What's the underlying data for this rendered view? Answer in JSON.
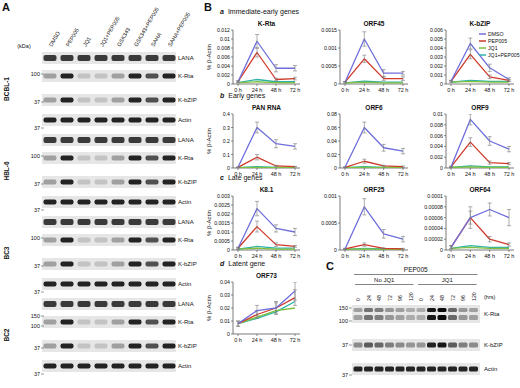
{
  "chart_data": [
    {
      "type": "line",
      "title": "K-Rta",
      "y_label": "% β-Actin",
      "categories": [
        "0 h",
        "24 h",
        "48 h",
        "72 h"
      ],
      "ylim": [
        0,
        0.012
      ],
      "yticks": [
        0,
        0.002,
        0.004,
        0.006,
        0.008,
        0.01,
        0.012
      ],
      "series": [
        {
          "name": "DMSO",
          "color": "#6f6fdc",
          "values": [
            0.0005,
            0.0095,
            0.0035,
            0.0035
          ],
          "errors": [
            0.0002,
            0.0015,
            0.0008,
            0.0006
          ]
        },
        {
          "name": "PEP005",
          "color": "#d03a2a",
          "values": [
            0.0005,
            0.007,
            0.001,
            0.0012
          ],
          "errors": [
            0.0002,
            0.001,
            0.0003,
            0.0003
          ]
        },
        {
          "name": "JQ1",
          "color": "#7fbf3f",
          "values": [
            0.0003,
            0.0005,
            0.0003,
            0.0003
          ]
        },
        {
          "name": "JQ1+PEP005",
          "color": "#2bb3a8",
          "values": [
            0.0003,
            0.001,
            0.0005,
            0.0005
          ]
        }
      ]
    },
    {
      "type": "line",
      "title": "ORF45",
      "categories": [
        "0 h",
        "24 h",
        "48 h",
        "72 h"
      ],
      "ylim": [
        0,
        0.0015
      ],
      "yticks": [
        0,
        0.0005,
        0.001,
        0.0015
      ],
      "series": [
        {
          "name": "DMSO",
          "color": "#6f6fdc",
          "values": [
            5e-05,
            0.00125,
            0.0003,
            0.0003
          ],
          "errors": [
            2e-05,
            0.0002,
            0.0001,
            5e-05
          ]
        },
        {
          "name": "PEP005",
          "color": "#d03a2a",
          "values": [
            5e-05,
            0.0007,
            0.00015,
            0.00015
          ],
          "errors": [
            2e-05,
            0.0001,
            5e-05,
            5e-05
          ]
        },
        {
          "name": "JQ1",
          "color": "#7fbf3f",
          "values": [
            3e-05,
            5e-05,
            3e-05,
            3e-05
          ]
        },
        {
          "name": "JQ1+PEP005",
          "color": "#2bb3a8",
          "values": [
            3e-05,
            8e-05,
            5e-05,
            5e-05
          ]
        }
      ]
    },
    {
      "type": "line",
      "title": "K-bZIP",
      "legend": "upper right",
      "categories": [
        "0 h",
        "24 h",
        "48 h",
        "72 h"
      ],
      "ylim": [
        0,
        0.006
      ],
      "yticks": [
        0,
        0.001,
        0.002,
        0.003,
        0.004,
        0.005,
        0.006
      ],
      "series": [
        {
          "name": "DMSO",
          "color": "#6f6fdc",
          "values": [
            0.0003,
            0.0045,
            0.0018,
            0.0005
          ],
          "errors": [
            0.0001,
            0.0006,
            0.0004,
            0.0002
          ]
        },
        {
          "name": "PEP005",
          "color": "#d03a2a",
          "values": [
            0.0003,
            0.0033,
            0.0008,
            0.0004
          ],
          "errors": [
            0.0001,
            0.0005,
            0.0002,
            0.0001
          ]
        },
        {
          "name": "JQ1",
          "color": "#7fbf3f",
          "values": [
            0.0002,
            0.0003,
            0.0002,
            0.0002
          ]
        },
        {
          "name": "JQ1+PEP005",
          "color": "#2bb3a8",
          "values": [
            0.0002,
            0.0004,
            0.0003,
            0.0003
          ]
        }
      ]
    },
    {
      "type": "line",
      "title": "PAN RNA",
      "y_label": "% β-Actin",
      "categories": [
        "0 h",
        "24 h",
        "48 h",
        "72 h"
      ],
      "ylim": [
        0,
        0.4
      ],
      "yticks": [
        0,
        0.1,
        0.2,
        0.3,
        0.4
      ],
      "series": [
        {
          "name": "DMSO",
          "color": "#6f6fdc",
          "values": [
            0.005,
            0.3,
            0.18,
            0.16
          ],
          "errors": [
            0.002,
            0.04,
            0.03,
            0.02
          ]
        },
        {
          "name": "PEP005",
          "color": "#d03a2a",
          "values": [
            0.005,
            0.08,
            0.015,
            0.01
          ],
          "errors": [
            0.002,
            0.02,
            0.005,
            0.003
          ]
        },
        {
          "name": "JQ1",
          "color": "#7fbf3f",
          "values": [
            0.003,
            0.005,
            0.003,
            0.003
          ]
        },
        {
          "name": "JQ1+PEP005",
          "color": "#2bb3a8",
          "values": [
            0.003,
            0.01,
            0.005,
            0.005
          ]
        }
      ]
    },
    {
      "type": "line",
      "title": "ORF6",
      "categories": [
        "0 h",
        "24 h",
        "48 h",
        "72 h"
      ],
      "ylim": [
        0,
        0.08
      ],
      "yticks": [
        0,
        0.02,
        0.04,
        0.06,
        0.08
      ],
      "series": [
        {
          "name": "DMSO",
          "color": "#6f6fdc",
          "values": [
            0.001,
            0.06,
            0.03,
            0.025
          ],
          "errors": [
            0.0005,
            0.008,
            0.005,
            0.004
          ]
        },
        {
          "name": "PEP005",
          "color": "#d03a2a",
          "values": [
            0.001,
            0.01,
            0.003,
            0.002
          ],
          "errors": [
            0.0005,
            0.003,
            0.001,
            0.001
          ]
        },
        {
          "name": "JQ1",
          "color": "#7fbf3f",
          "values": [
            0.0005,
            0.001,
            0.0005,
            0.0005
          ]
        },
        {
          "name": "JQ1+PEP005",
          "color": "#2bb3a8",
          "values": [
            0.0005,
            0.002,
            0.001,
            0.001
          ]
        }
      ]
    },
    {
      "type": "line",
      "title": "ORF9",
      "categories": [
        "0 h",
        "24 h",
        "48 h",
        "72 h"
      ],
      "ylim": [
        0,
        0.01
      ],
      "yticks": [
        0,
        0.002,
        0.004,
        0.006,
        0.008,
        0.01
      ],
      "series": [
        {
          "name": "DMSO",
          "color": "#6f6fdc",
          "values": [
            0.0002,
            0.009,
            0.005,
            0.0035
          ],
          "errors": [
            0.0001,
            0.001,
            0.0008,
            0.0005
          ]
        },
        {
          "name": "PEP005",
          "color": "#d03a2a",
          "values": [
            0.0002,
            0.0048,
            0.001,
            0.0008
          ],
          "errors": [
            0.0001,
            0.0008,
            0.0003,
            0.0002
          ]
        },
        {
          "name": "JQ1",
          "color": "#7fbf3f",
          "values": [
            0.0001,
            0.0002,
            0.0001,
            0.0001
          ]
        },
        {
          "name": "JQ1+PEP005",
          "color": "#2bb3a8",
          "values": [
            0.0001,
            0.0004,
            0.0002,
            0.0002
          ]
        }
      ]
    },
    {
      "type": "line",
      "title": "K8.1",
      "y_label": "% β-Actin",
      "categories": [
        "0 h",
        "24 h",
        "48 h",
        "72 h"
      ],
      "ylim": [
        0,
        0.003
      ],
      "yticks": [
        0,
        0.0005,
        0.001,
        0.0015,
        0.002,
        0.0025,
        0.003
      ],
      "series": [
        {
          "name": "DMSO",
          "color": "#6f6fdc",
          "values": [
            0.0001,
            0.0023,
            0.0012,
            0.001
          ],
          "errors": [
            5e-05,
            0.0004,
            0.0002,
            0.0002
          ]
        },
        {
          "name": "PEP005",
          "color": "#d03a2a",
          "values": [
            0.0001,
            0.0013,
            0.0003,
            0.0002
          ],
          "errors": [
            5e-05,
            0.0003,
            0.0001,
            5e-05
          ]
        },
        {
          "name": "JQ1",
          "color": "#7fbf3f",
          "values": [
            5e-05,
            0.0001,
            5e-05,
            5e-05
          ]
        },
        {
          "name": "JQ1+PEP005",
          "color": "#2bb3a8",
          "values": [
            5e-05,
            0.0002,
            0.0001,
            0.0001
          ]
        }
      ]
    },
    {
      "type": "line",
      "title": "ORF25",
      "categories": [
        "0 h",
        "24 h",
        "48 h",
        "72 h"
      ],
      "ylim": [
        0,
        0.001
      ],
      "yticks": [
        0,
        0.0005,
        0.001
      ],
      "series": [
        {
          "name": "DMSO",
          "color": "#6f6fdc",
          "values": [
            2e-05,
            0.0008,
            0.0003,
            0.0002
          ],
          "errors": [
            1e-05,
            0.00015,
            8e-05,
            5e-05
          ]
        },
        {
          "name": "PEP005",
          "color": "#d03a2a",
          "values": [
            2e-05,
            0.0001,
            3e-05,
            2e-05
          ],
          "errors": [
            1e-05,
            3e-05,
            1e-05,
            1e-05
          ]
        },
        {
          "name": "JQ1",
          "color": "#7fbf3f",
          "values": [
            1e-05,
            2e-05,
            1e-05,
            1e-05
          ]
        },
        {
          "name": "JQ1+PEP005",
          "color": "#2bb3a8",
          "values": [
            1e-05,
            3e-05,
            2e-05,
            2e-05
          ]
        }
      ]
    },
    {
      "type": "line",
      "title": "ORF64",
      "categories": [
        "0 h",
        "24 h",
        "48 h",
        "72 h"
      ],
      "ylim": [
        0,
        0.0001
      ],
      "yticks": [
        0,
        2e-05,
        4e-05,
        6e-05,
        8e-05,
        0.0001
      ],
      "series": [
        {
          "name": "DMSO",
          "color": "#6f6fdc",
          "values": [
            5e-06,
            6e-05,
            7.5e-05,
            6e-05
          ],
          "errors": [
            3e-06,
            1.2e-05,
            1.2e-05,
            1.5e-05
          ]
        },
        {
          "name": "PEP005",
          "color": "#d03a2a",
          "values": [
            5e-06,
            6e-05,
            2e-05,
            1e-05
          ],
          "errors": [
            3e-06,
            2e-05,
            5e-06,
            3e-06
          ]
        },
        {
          "name": "JQ1",
          "color": "#7fbf3f",
          "values": [
            3e-06,
            5e-06,
            3e-06,
            3e-06
          ]
        },
        {
          "name": "JQ1+PEP005",
          "color": "#2bb3a8",
          "values": [
            3e-06,
            8e-06,
            5e-06,
            5e-06
          ]
        }
      ]
    },
    {
      "type": "line",
      "title": "ORF73",
      "y_label": "% β-Actin",
      "categories": [
        "0 h",
        "24 h",
        "48 h",
        "72 h"
      ],
      "ylim": [
        0,
        0.04
      ],
      "yticks": [
        0,
        0.01,
        0.02,
        0.03,
        0.04
      ],
      "series": [
        {
          "name": "DMSO",
          "color": "#6f6fdc",
          "values": [
            0.008,
            0.018,
            0.02,
            0.033
          ],
          "errors": [
            0.002,
            0.004,
            0.005,
            0.007
          ]
        },
        {
          "name": "PEP005",
          "color": "#d03a2a",
          "values": [
            0.008,
            0.015,
            0.02,
            0.028
          ],
          "errors": [
            0.002,
            0.003,
            0.004,
            0.006
          ]
        },
        {
          "name": "JQ1",
          "color": "#7fbf3f",
          "values": [
            0.008,
            0.013,
            0.018,
            0.02
          ]
        },
        {
          "name": "JQ1+PEP005",
          "color": "#2bb3a8",
          "values": [
            0.008,
            0.012,
            0.017,
            0.025
          ]
        }
      ]
    }
  ],
  "figure": {
    "panel_labels": [
      "A",
      "B",
      "C"
    ],
    "row_groups": [
      {
        "letter": "a",
        "title": "Immediate-early genes"
      },
      {
        "letter": "b",
        "title": "Early genes"
      },
      {
        "letter": "c",
        "title": "Late genes"
      },
      {
        "letter": "d",
        "title": "Latent gene"
      }
    ],
    "blot_A": {
      "kda_label": "(kDa)",
      "lanes": [
        "DMSO",
        "PEP005",
        "JQ1",
        "JQ1+PEP005",
        "GSK343",
        "GSK343+PEP005",
        "SAHA",
        "SAHA+PEP005"
      ],
      "cell_lines": [
        {
          "name": "BCBL-1",
          "bands": [
            "LANA",
            "K-Rta",
            "K-bZIP",
            "Actin"
          ],
          "markers": [
            100,
            37,
            37
          ]
        },
        {
          "name": "HBL-6",
          "bands": [
            "LANA",
            "K-Rta",
            "K-bZIP",
            "Actin"
          ],
          "markers": [
            100,
            37,
            37
          ]
        },
        {
          "name": "BC3",
          "bands": [
            "LANA",
            "K-Rta",
            "K-bZIP",
            "Actin"
          ],
          "markers": [
            100,
            37,
            37
          ]
        },
        {
          "name": "BC2",
          "bands": [
            "LANA",
            "K-Rta",
            "K-bZIP",
            "Actin"
          ],
          "markers": [
            150,
            100,
            37,
            37
          ]
        }
      ]
    },
    "blot_C": {
      "header": "PEP005",
      "groups": [
        "No JQ1",
        "JQ1"
      ],
      "times": [
        0,
        24,
        48,
        72,
        96,
        120
      ],
      "time_unit": "(hrs)",
      "bands": [
        "K-Rta",
        "K-bZIP",
        "Actin"
      ],
      "markers": [
        150,
        100,
        37,
        37
      ]
    }
  }
}
